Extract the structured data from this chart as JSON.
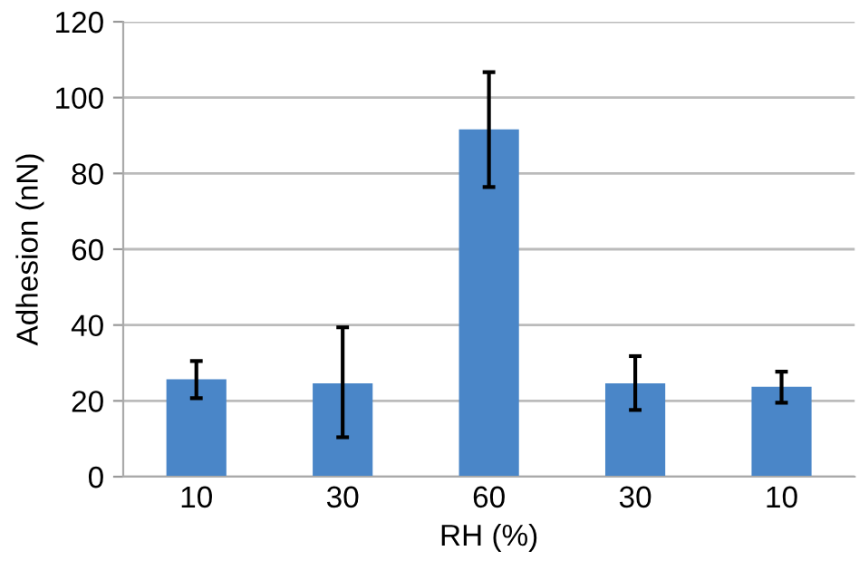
{
  "chart_data": {
    "type": "bar",
    "xlabel": "RH (%)",
    "ylabel": "Adhesion (nN)",
    "categories": [
      "10",
      "30",
      "60",
      "30",
      "10"
    ],
    "values": [
      25.7,
      24.6,
      91.6,
      24.6,
      23.7
    ],
    "errors": [
      [
        20.7,
        30.5
      ],
      [
        10.4,
        39.4
      ],
      [
        76.4,
        106.7
      ],
      [
        17.6,
        31.8
      ],
      [
        19.5,
        27.7
      ]
    ],
    "color": "#4a86c8",
    "ylim": [
      0,
      120
    ],
    "yticks": [
      0,
      20,
      40,
      60,
      80,
      100,
      120
    ],
    "grid": "y"
  }
}
